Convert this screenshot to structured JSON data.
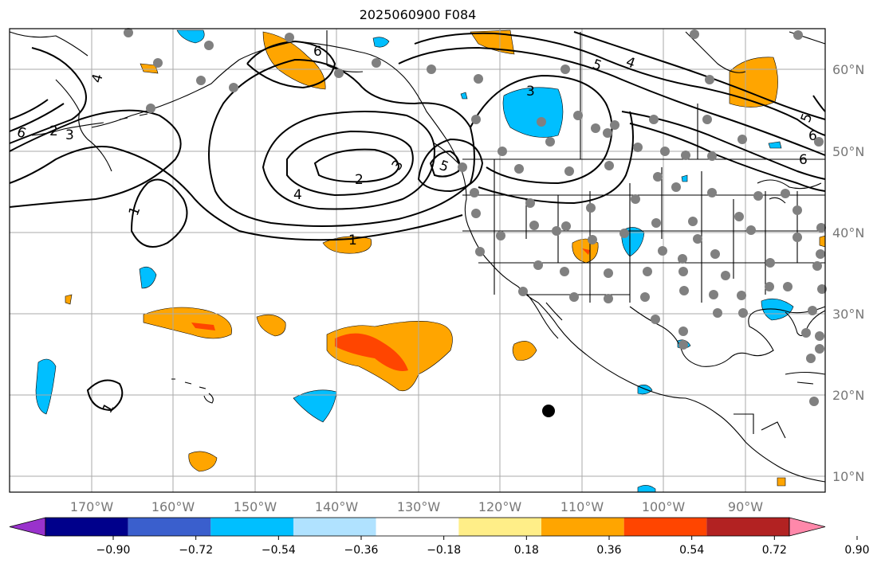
{
  "title": "2025060900 F084",
  "lat_labels": [
    "60°N",
    "50°N",
    "40°N",
    "30°N",
    "20°N",
    "10°N"
  ],
  "lon_labels": [
    "170°W",
    "160°W",
    "150°W",
    "140°W",
    "130°W",
    "120°W",
    "110°W",
    "100°W",
    "90°W"
  ],
  "colorbar": {
    "ticks": [
      "−0.90",
      "−0.72",
      "−0.54",
      "−0.36",
      "−0.18",
      "0.18",
      "0.36",
      "0.54",
      "0.72",
      "0.90"
    ],
    "colors": [
      "#9932cc",
      "#00008b",
      "#3a5fcd",
      "#00bfff",
      "#b0e2ff",
      "#ffffff",
      "#ffee88",
      "#ffa500",
      "#ff4500",
      "#b22222",
      "#ff88aa"
    ]
  },
  "contour_labels": [
    "1",
    "1",
    "1",
    "2",
    "2",
    "3",
    "3",
    "3",
    "4",
    "4",
    "4",
    "5",
    "5",
    "5",
    "6",
    "6",
    "6",
    "6"
  ],
  "colors": {
    "land_outline": "#000000",
    "grid": "#aaaaaa",
    "station_dot": "#808080",
    "contour": "#000000",
    "orange": "#ffa500",
    "red_orange": "#ff4500",
    "sky_blue": "#00bfff"
  }
}
